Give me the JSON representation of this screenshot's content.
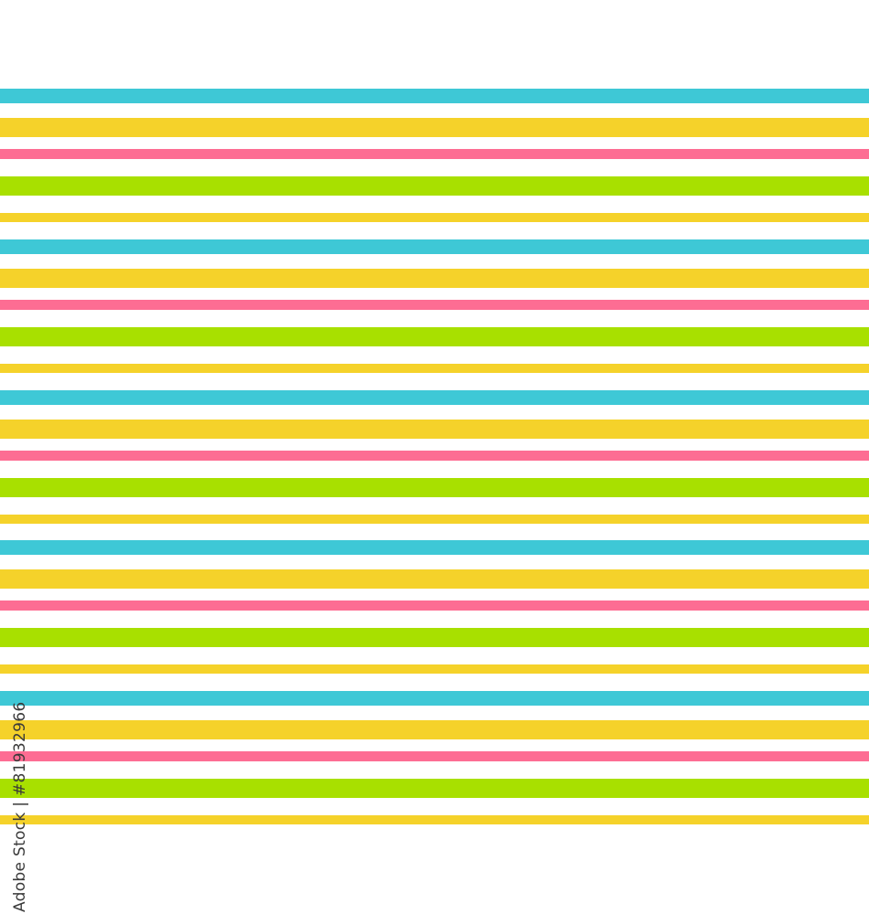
{
  "pattern": {
    "colors": {
      "cyan": "#3ec8d6",
      "yellow": "#f5d22a",
      "pink": "#fd6d93",
      "green": "#a8e000",
      "background": "#ffffff"
    },
    "repeat_sequence": [
      "cyan",
      "yellow",
      "pink",
      "green",
      "yellow"
    ],
    "repeat_count": 5
  },
  "watermark": {
    "credit": "Adobe Stock | #81932966"
  }
}
